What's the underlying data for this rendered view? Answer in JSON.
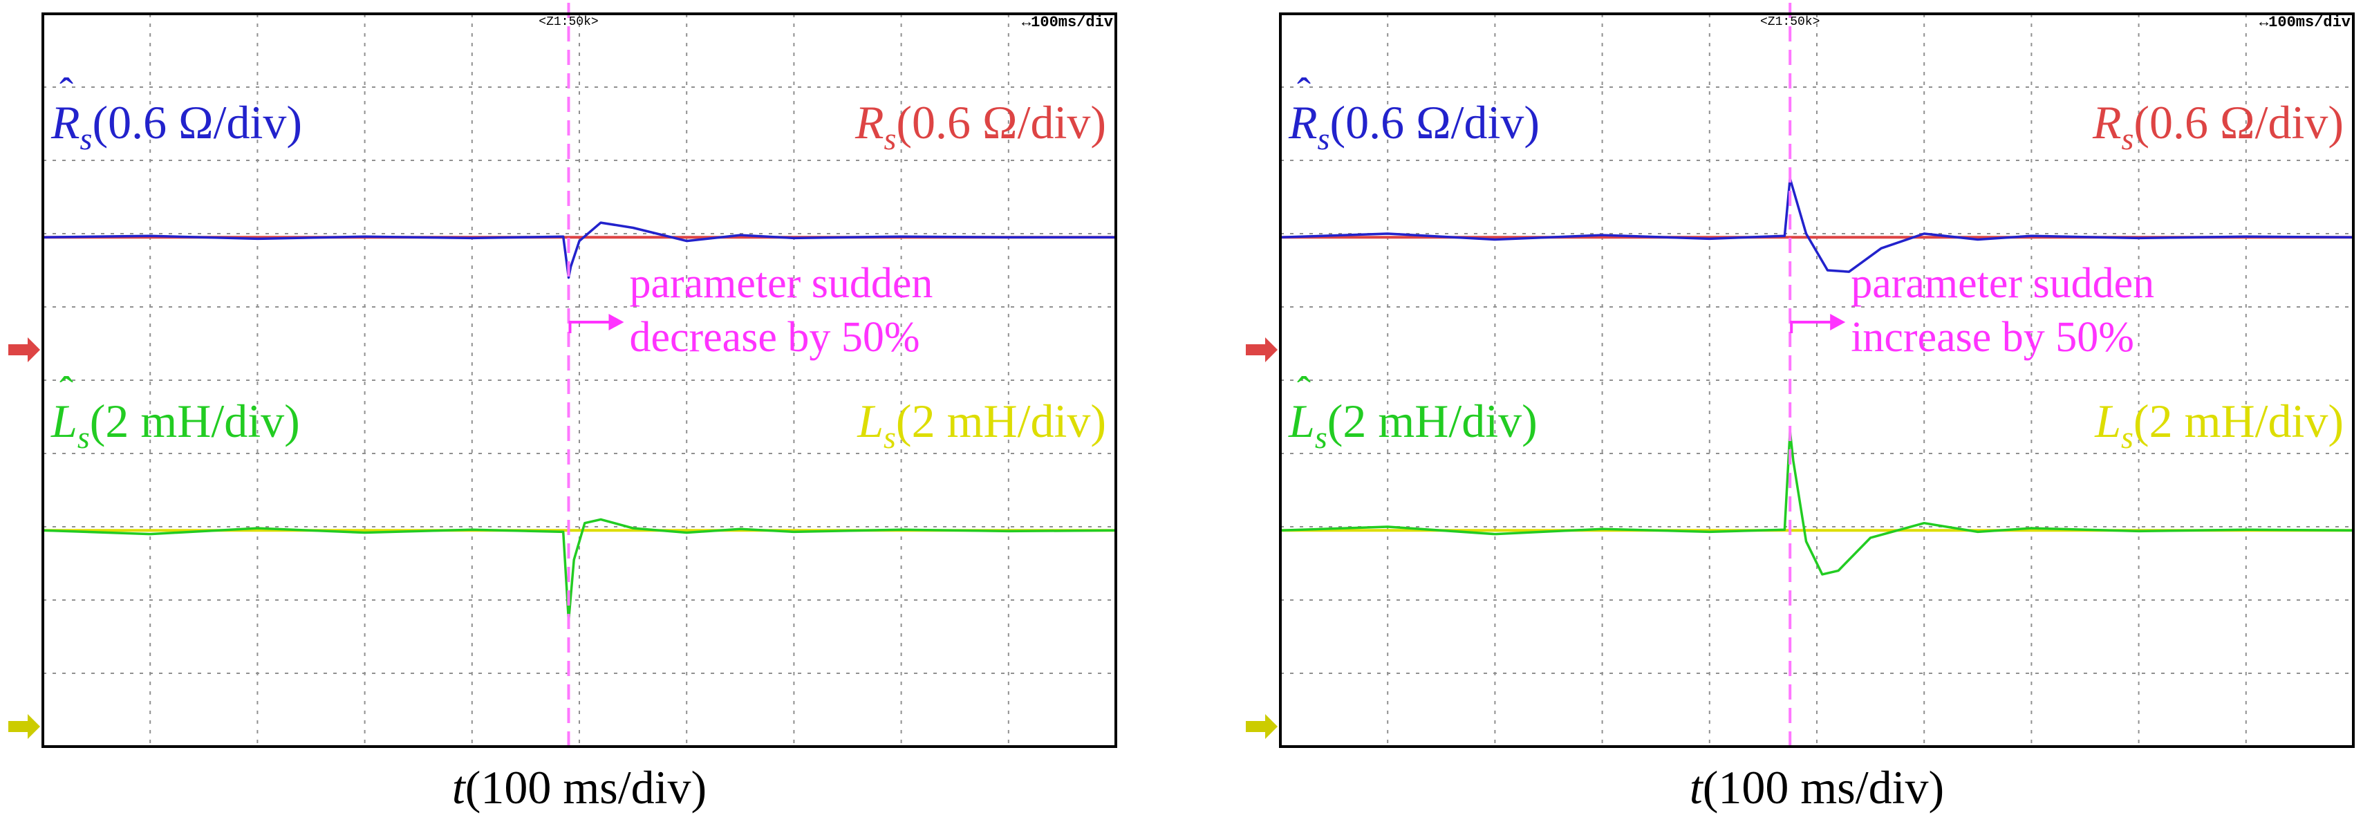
{
  "panels": [
    {
      "cursor_label": "<Z1:50k>",
      "timebase_label": "↔100ms/div",
      "rs_hat_label": {
        "sym": "R",
        "hat": "ˆ",
        "sub": "s",
        "unit": "(0.6 Ω/div)"
      },
      "rs_label": {
        "sym": "R",
        "sub": "s",
        "unit": "(0.6 Ω/div)"
      },
      "ls_hat_label": {
        "sym": "L",
        "hat": "ˆ",
        "sub": "s",
        "unit": "(2 mH/div)"
      },
      "ls_label": {
        "sym": "L",
        "sub": "s",
        "unit": "(2 mH/div)"
      },
      "annotation": [
        "parameter sudden",
        "decrease by 50%"
      ],
      "xlabel": {
        "sym": "t",
        "unit": "(100 ms/div)"
      }
    },
    {
      "cursor_label": "<Z1:50k>",
      "timebase_label": "↔100ms/div",
      "rs_hat_label": {
        "sym": "R",
        "hat": "ˆ",
        "sub": "s",
        "unit": "(0.6 Ω/div)"
      },
      "rs_label": {
        "sym": "R",
        "sub": "s",
        "unit": "(0.6 Ω/div)"
      },
      "ls_hat_label": {
        "sym": "L",
        "hat": "ˆ",
        "sub": "s",
        "unit": "(2 mH/div)"
      },
      "ls_label": {
        "sym": "L",
        "sub": "s",
        "unit": "(2 mH/div)"
      },
      "annotation": [
        "parameter sudden",
        "increase by 50%"
      ],
      "xlabel": {
        "sym": "t",
        "unit": "(100 ms/div)"
      }
    }
  ],
  "colors": {
    "rs_hat": "#2222cc",
    "rs": "#dd4444",
    "ls_hat": "#22cc22",
    "ls": "#dddd00",
    "annotation": "#ff33ff",
    "cursor": "#ff77ff",
    "marker_red": "#dd4444",
    "marker_yellow": "#cccc00"
  },
  "chart_data": [
    {
      "type": "line",
      "x_unit": "div",
      "xlim": [
        0,
        10
      ],
      "ylim": [
        0,
        10
      ],
      "grid": true,
      "step_at_x": 4.9,
      "series": [
        {
          "name": "R̂s",
          "x": [
            0,
            1,
            2,
            3,
            4,
            4.85,
            4.9,
            4.92,
            5.0,
            5.2,
            5.5,
            6.0,
            6.5,
            7,
            8,
            9,
            10
          ],
          "y": [
            6.95,
            6.97,
            6.93,
            6.96,
            6.94,
            6.96,
            6.4,
            6.55,
            6.9,
            7.15,
            7.08,
            6.9,
            6.98,
            6.94,
            6.96,
            6.95,
            6.95
          ]
        },
        {
          "name": "Rs",
          "x": [
            0,
            10
          ],
          "y": [
            6.95,
            6.95
          ]
        },
        {
          "name": "L̂s",
          "x": [
            0,
            1,
            2,
            3,
            4,
            4.85,
            4.9,
            4.95,
            5.05,
            5.2,
            5.5,
            6.0,
            6.5,
            7,
            8,
            9,
            10
          ],
          "y": [
            2.95,
            2.9,
            2.98,
            2.92,
            2.96,
            2.93,
            1.72,
            2.55,
            3.05,
            3.1,
            2.98,
            2.92,
            2.97,
            2.93,
            2.96,
            2.94,
            2.95
          ]
        },
        {
          "name": "Ls",
          "x": [
            0,
            10
          ],
          "y": [
            2.95,
            2.95
          ]
        }
      ]
    },
    {
      "type": "line",
      "x_unit": "div",
      "xlim": [
        0,
        10
      ],
      "ylim": [
        0,
        10
      ],
      "grid": true,
      "step_at_x": 4.75,
      "series": [
        {
          "name": "R̂s",
          "x": [
            0,
            1,
            2,
            3,
            4,
            4.7,
            4.75,
            4.78,
            4.9,
            5.1,
            5.3,
            5.6,
            6.0,
            6.5,
            7,
            8,
            9,
            10
          ],
          "y": [
            6.95,
            7.0,
            6.92,
            6.98,
            6.93,
            6.97,
            7.75,
            7.6,
            7.0,
            6.5,
            6.48,
            6.8,
            7.0,
            6.92,
            6.97,
            6.94,
            6.96,
            6.95
          ]
        },
        {
          "name": "Rs",
          "x": [
            0,
            10
          ],
          "y": [
            6.95,
            6.95
          ]
        },
        {
          "name": "L̂s",
          "x": [
            0,
            1,
            2,
            3,
            4,
            4.7,
            4.75,
            4.78,
            4.9,
            5.05,
            5.2,
            5.5,
            6.0,
            6.5,
            7,
            8,
            9,
            10
          ],
          "y": [
            2.95,
            3.0,
            2.9,
            2.97,
            2.93,
            2.96,
            4.3,
            3.9,
            2.8,
            2.35,
            2.4,
            2.85,
            3.05,
            2.93,
            2.98,
            2.94,
            2.96,
            2.95
          ]
        },
        {
          "name": "Ls",
          "x": [
            0,
            10
          ],
          "y": [
            2.95,
            2.95
          ]
        }
      ]
    }
  ]
}
